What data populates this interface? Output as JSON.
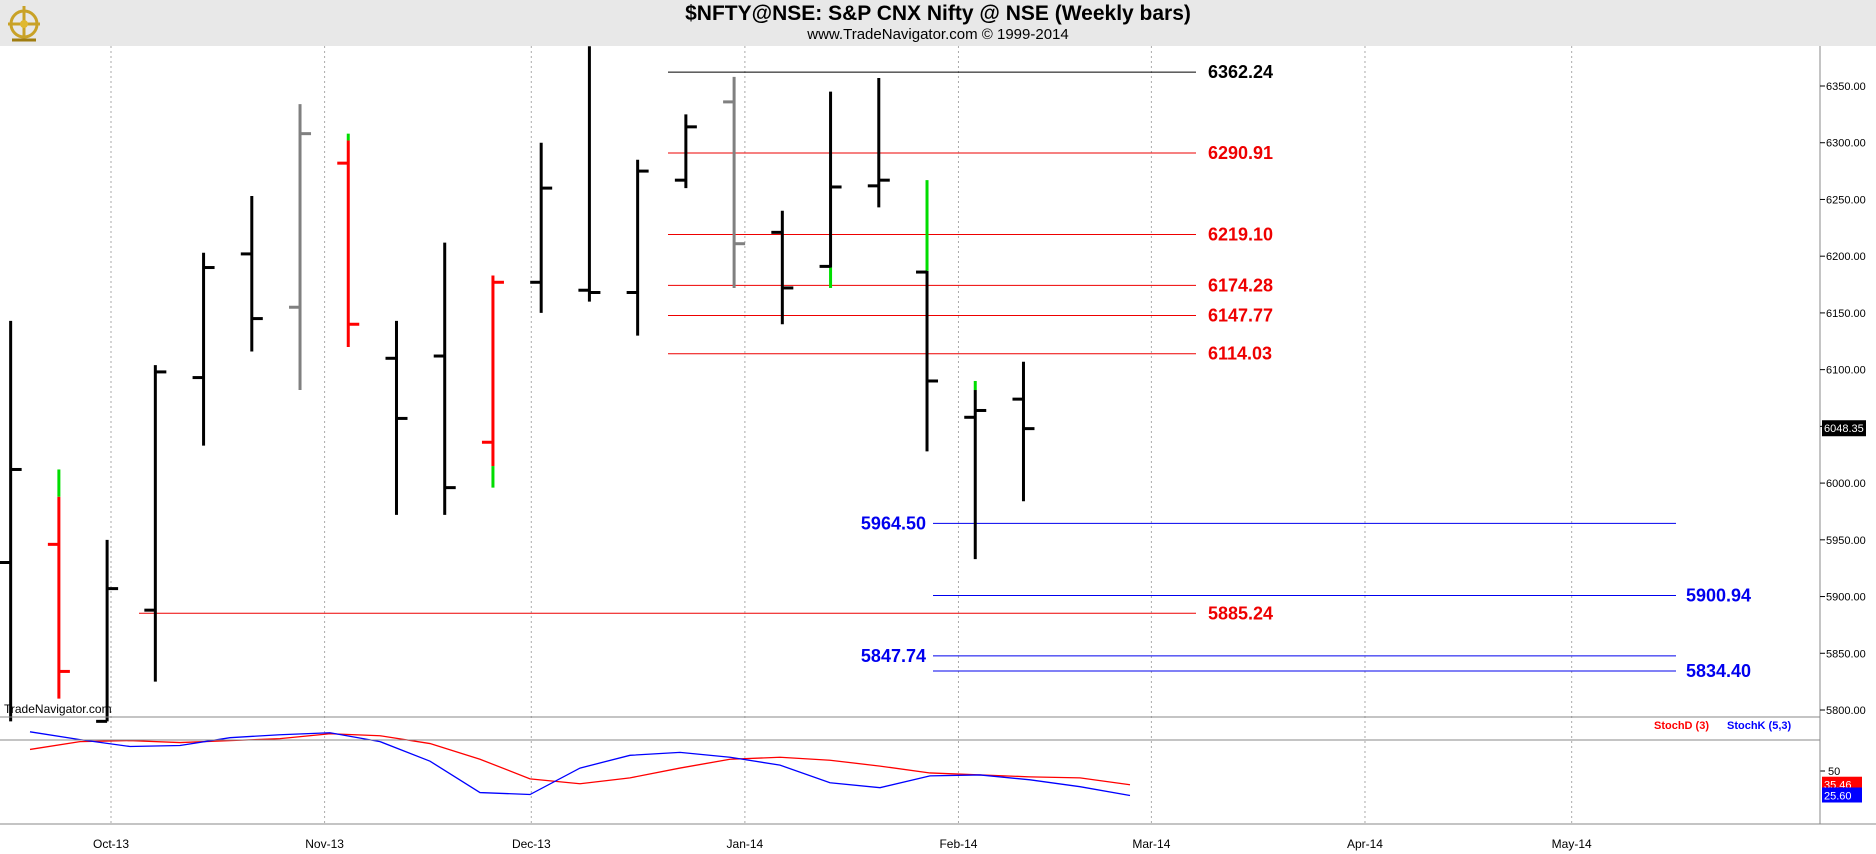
{
  "header": {
    "title": "$NFTY@NSE:  S&P CNX Nifty @ NSE  (Weekly bars)",
    "subtitle": "www.TradeNavigator.com © 1999-2014",
    "watermark": "TradeNavigator.com"
  },
  "colors": {
    "background": "#ffffff",
    "header_bg": "#e8e8e8",
    "bar_default": "#000000",
    "bar_red": "#ff0000",
    "bar_gray": "#808080",
    "bar_green": "#00dd00",
    "level_red": "#ee0000",
    "level_blue": "#0000ee",
    "stoch_d": "#ff0000",
    "stoch_k": "#0000ff"
  },
  "chart_data": [
    {
      "type": "ohlc",
      "title": "$NFTY@NSE:  S&P CNX Nifty @ NSE  (Weekly bars)",
      "ylim": [
        5790,
        6385
      ],
      "y_ticks": [
        "5800.00",
        "5850.00",
        "5900.00",
        "5950.00",
        "6000.00",
        "6050.00",
        "6100.00",
        "6150.00",
        "6200.00",
        "6250.00",
        "6300.00",
        "6350.00"
      ],
      "x_tick_labels": [
        "Oct-13",
        "Nov-13",
        "Dec-13",
        "Jan-14",
        "Feb-14",
        "Mar-14",
        "Apr-14",
        "May-14"
      ],
      "last_price_label": "6048.35",
      "bars": [
        {
          "week": "2013-09-16",
          "open": 5930,
          "high": 6143,
          "low": 5790,
          "close": 6012,
          "color": "black"
        },
        {
          "week": "2013-09-23",
          "open": 5946,
          "high": 5988,
          "low": 5810,
          "close": 5834,
          "color": "red",
          "extra_high": 6012
        },
        {
          "week": "2013-09-30",
          "open": 5790,
          "high": 5950,
          "low": 5790,
          "close": 5907,
          "color": "black"
        },
        {
          "week": "2013-10-07",
          "open": 5888,
          "high": 6104,
          "low": 5825,
          "close": 6098,
          "color": "black"
        },
        {
          "week": "2013-10-14",
          "open": 6093,
          "high": 6203,
          "low": 6033,
          "close": 6190,
          "color": "black"
        },
        {
          "week": "2013-10-21",
          "open": 6202,
          "high": 6253,
          "low": 6116,
          "close": 6145,
          "color": "black"
        },
        {
          "week": "2013-10-28",
          "open": 6155,
          "high": 6334,
          "low": 6082,
          "close": 6308,
          "color": "gray"
        },
        {
          "week": "2013-11-04",
          "open": 6282,
          "high": 6302,
          "low": 6120,
          "close": 6140,
          "color": "red",
          "extra_high": 6308
        },
        {
          "week": "2013-11-11",
          "open": 6110,
          "high": 6143,
          "low": 5972,
          "close": 6057,
          "color": "black"
        },
        {
          "week": "2013-11-18",
          "open": 6112,
          "high": 6212,
          "low": 5972,
          "close": 5996,
          "color": "black"
        },
        {
          "week": "2013-11-25",
          "open": 6036,
          "high": 6183,
          "low": 6015,
          "close": 6177,
          "color": "red",
          "extra_low": 5996
        },
        {
          "week": "2013-12-02",
          "open": 6177,
          "high": 6300,
          "low": 6150,
          "close": 6260,
          "color": "black"
        },
        {
          "week": "2013-12-09",
          "open": 6170,
          "high": 6385,
          "low": 6160,
          "close": 6168,
          "color": "black"
        },
        {
          "week": "2013-12-16",
          "open": 6168,
          "high": 6285,
          "low": 6130,
          "close": 6275,
          "color": "black"
        },
        {
          "week": "2013-12-23",
          "open": 6267,
          "high": 6325,
          "low": 6260,
          "close": 6314,
          "color": "black"
        },
        {
          "week": "2013-12-30",
          "open": 6336,
          "high": 6358,
          "low": 6172,
          "close": 6211,
          "color": "gray"
        },
        {
          "week": "2014-01-06",
          "open": 6221,
          "high": 6240,
          "low": 6140,
          "close": 6172,
          "color": "black"
        },
        {
          "week": "2014-01-13",
          "open": 6191,
          "high": 6345,
          "low": 6190,
          "close": 6261,
          "color": "black",
          "extra_low": 6172
        },
        {
          "week": "2014-01-20",
          "open": 6262,
          "high": 6357,
          "low": 6243,
          "close": 6267,
          "color": "black"
        },
        {
          "week": "2014-01-27",
          "open": 6186,
          "high": 6187,
          "low": 6028,
          "close": 6090,
          "color": "black",
          "extra_high": 6267
        },
        {
          "week": "2014-02-03",
          "open": 6058,
          "high": 6082,
          "low": 5933,
          "close": 6064,
          "color": "black",
          "extra_high": 6090
        },
        {
          "week": "2014-02-10",
          "open": 6074,
          "high": 6107,
          "low": 5984,
          "close": 6048,
          "color": "black"
        }
      ],
      "levels": [
        {
          "label": "6362.24",
          "value": 6362.24,
          "color": "black",
          "from_week": "2013-12-09",
          "to_week": "2014-03-07"
        },
        {
          "label": "6290.91",
          "value": 6290.91,
          "color": "red",
          "from_week": "2013-12-09",
          "to_week": "2014-03-07"
        },
        {
          "label": "6219.10",
          "value": 6219.1,
          "color": "red",
          "from_week": "2013-12-09",
          "to_week": "2014-03-07"
        },
        {
          "label": "6174.28",
          "value": 6174.28,
          "color": "red",
          "from_week": "2013-12-09",
          "to_week": "2014-03-07"
        },
        {
          "label": "6147.77",
          "value": 6147.77,
          "color": "red",
          "from_week": "2013-12-09",
          "to_week": "2014-03-07"
        },
        {
          "label": "6114.03",
          "value": 6114.03,
          "color": "red",
          "from_week": "2013-12-09",
          "to_week": "2014-03-07"
        },
        {
          "label": "5885.24",
          "value": 5885.24,
          "color": "red",
          "from_week": "2013-09-30",
          "to_week": "2014-03-07"
        },
        {
          "label": "5964.50",
          "value": 5964.5,
          "color": "blue",
          "label_side": "left",
          "from_week": "2014-01-20",
          "to_week": "2014-05-07"
        },
        {
          "label": "5900.94",
          "value": 5900.94,
          "color": "blue",
          "label_side": "right",
          "from_week": "2014-01-20",
          "to_week": "2014-05-07"
        },
        {
          "label": "5847.74",
          "value": 5847.74,
          "color": "blue",
          "label_side": "left",
          "from_week": "2014-01-20",
          "to_week": "2014-05-07"
        },
        {
          "label": "5834.40",
          "value": 5834.4,
          "color": "blue",
          "label_side": "right",
          "from_week": "2014-01-20",
          "to_week": "2014-05-07"
        }
      ]
    },
    {
      "type": "line",
      "title": "",
      "ylim": [
        0,
        100
      ],
      "y_ticks": [
        "50"
      ],
      "legend": [
        "StochD (3)",
        "StochK (5,3)"
      ],
      "series": [
        {
          "name": "StochD (3)",
          "color": "red",
          "last_label": "35.46",
          "values": [
            72,
            80,
            81,
            79,
            81,
            83,
            88,
            86,
            78,
            62,
            42,
            37,
            43,
            53,
            62,
            64,
            61,
            55,
            48,
            46,
            44,
            43,
            36
          ]
        },
        {
          "name": "StochK (5,3)",
          "color": "blue",
          "last_label": "25.60",
          "values": [
            90,
            82,
            75,
            76,
            84,
            87,
            89,
            80,
            60,
            28,
            26,
            53,
            66,
            69,
            64,
            56,
            38,
            33,
            45,
            46,
            41,
            34,
            25
          ]
        }
      ]
    }
  ]
}
